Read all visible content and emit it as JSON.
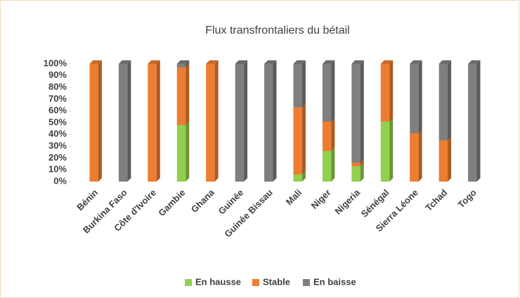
{
  "chart_data": {
    "type": "stacked_bar",
    "title": "Flux transfrontaliers du bétail",
    "categories": [
      "Bénin",
      "Burkina Faso",
      "Côte d'Ivoire",
      "Gambie",
      "Ghana",
      "Guinée",
      "Guinée Bissau",
      "Mali",
      "Niger",
      "Nigeria",
      "Sénégal",
      "Sierra Léone",
      "Tchad",
      "Togo"
    ],
    "series": [
      {
        "name": "En hausse",
        "color": "#92d050",
        "values": [
          0,
          0,
          0,
          48,
          0,
          0,
          0,
          6,
          26,
          13,
          51,
          0,
          0,
          0
        ]
      },
      {
        "name": "Stable",
        "color": "#ed7d31",
        "values": [
          100,
          0,
          100,
          49,
          100,
          0,
          0,
          57,
          25,
          3,
          49,
          41,
          35,
          0
        ]
      },
      {
        "name": "En baisse",
        "color": "#7f7f7f",
        "values": [
          0,
          100,
          0,
          3,
          0,
          100,
          100,
          37,
          49,
          84,
          0,
          59,
          65,
          100
        ]
      }
    ],
    "ylim": [
      0,
      100
    ],
    "yticks": [
      {
        "value": 0,
        "label": "0%"
      },
      {
        "value": 10,
        "label": "10%"
      },
      {
        "value": 20,
        "label": "20%"
      },
      {
        "value": 30,
        "label": "30%"
      },
      {
        "value": 40,
        "label": "40%"
      },
      {
        "value": 50,
        "label": "50%"
      },
      {
        "value": 60,
        "label": "60%"
      },
      {
        "value": 70,
        "label": "70%"
      },
      {
        "value": 80,
        "label": "80%"
      },
      {
        "value": 90,
        "label": "90%"
      },
      {
        "value": 100,
        "label": "100%"
      }
    ],
    "legend": "bottom"
  }
}
